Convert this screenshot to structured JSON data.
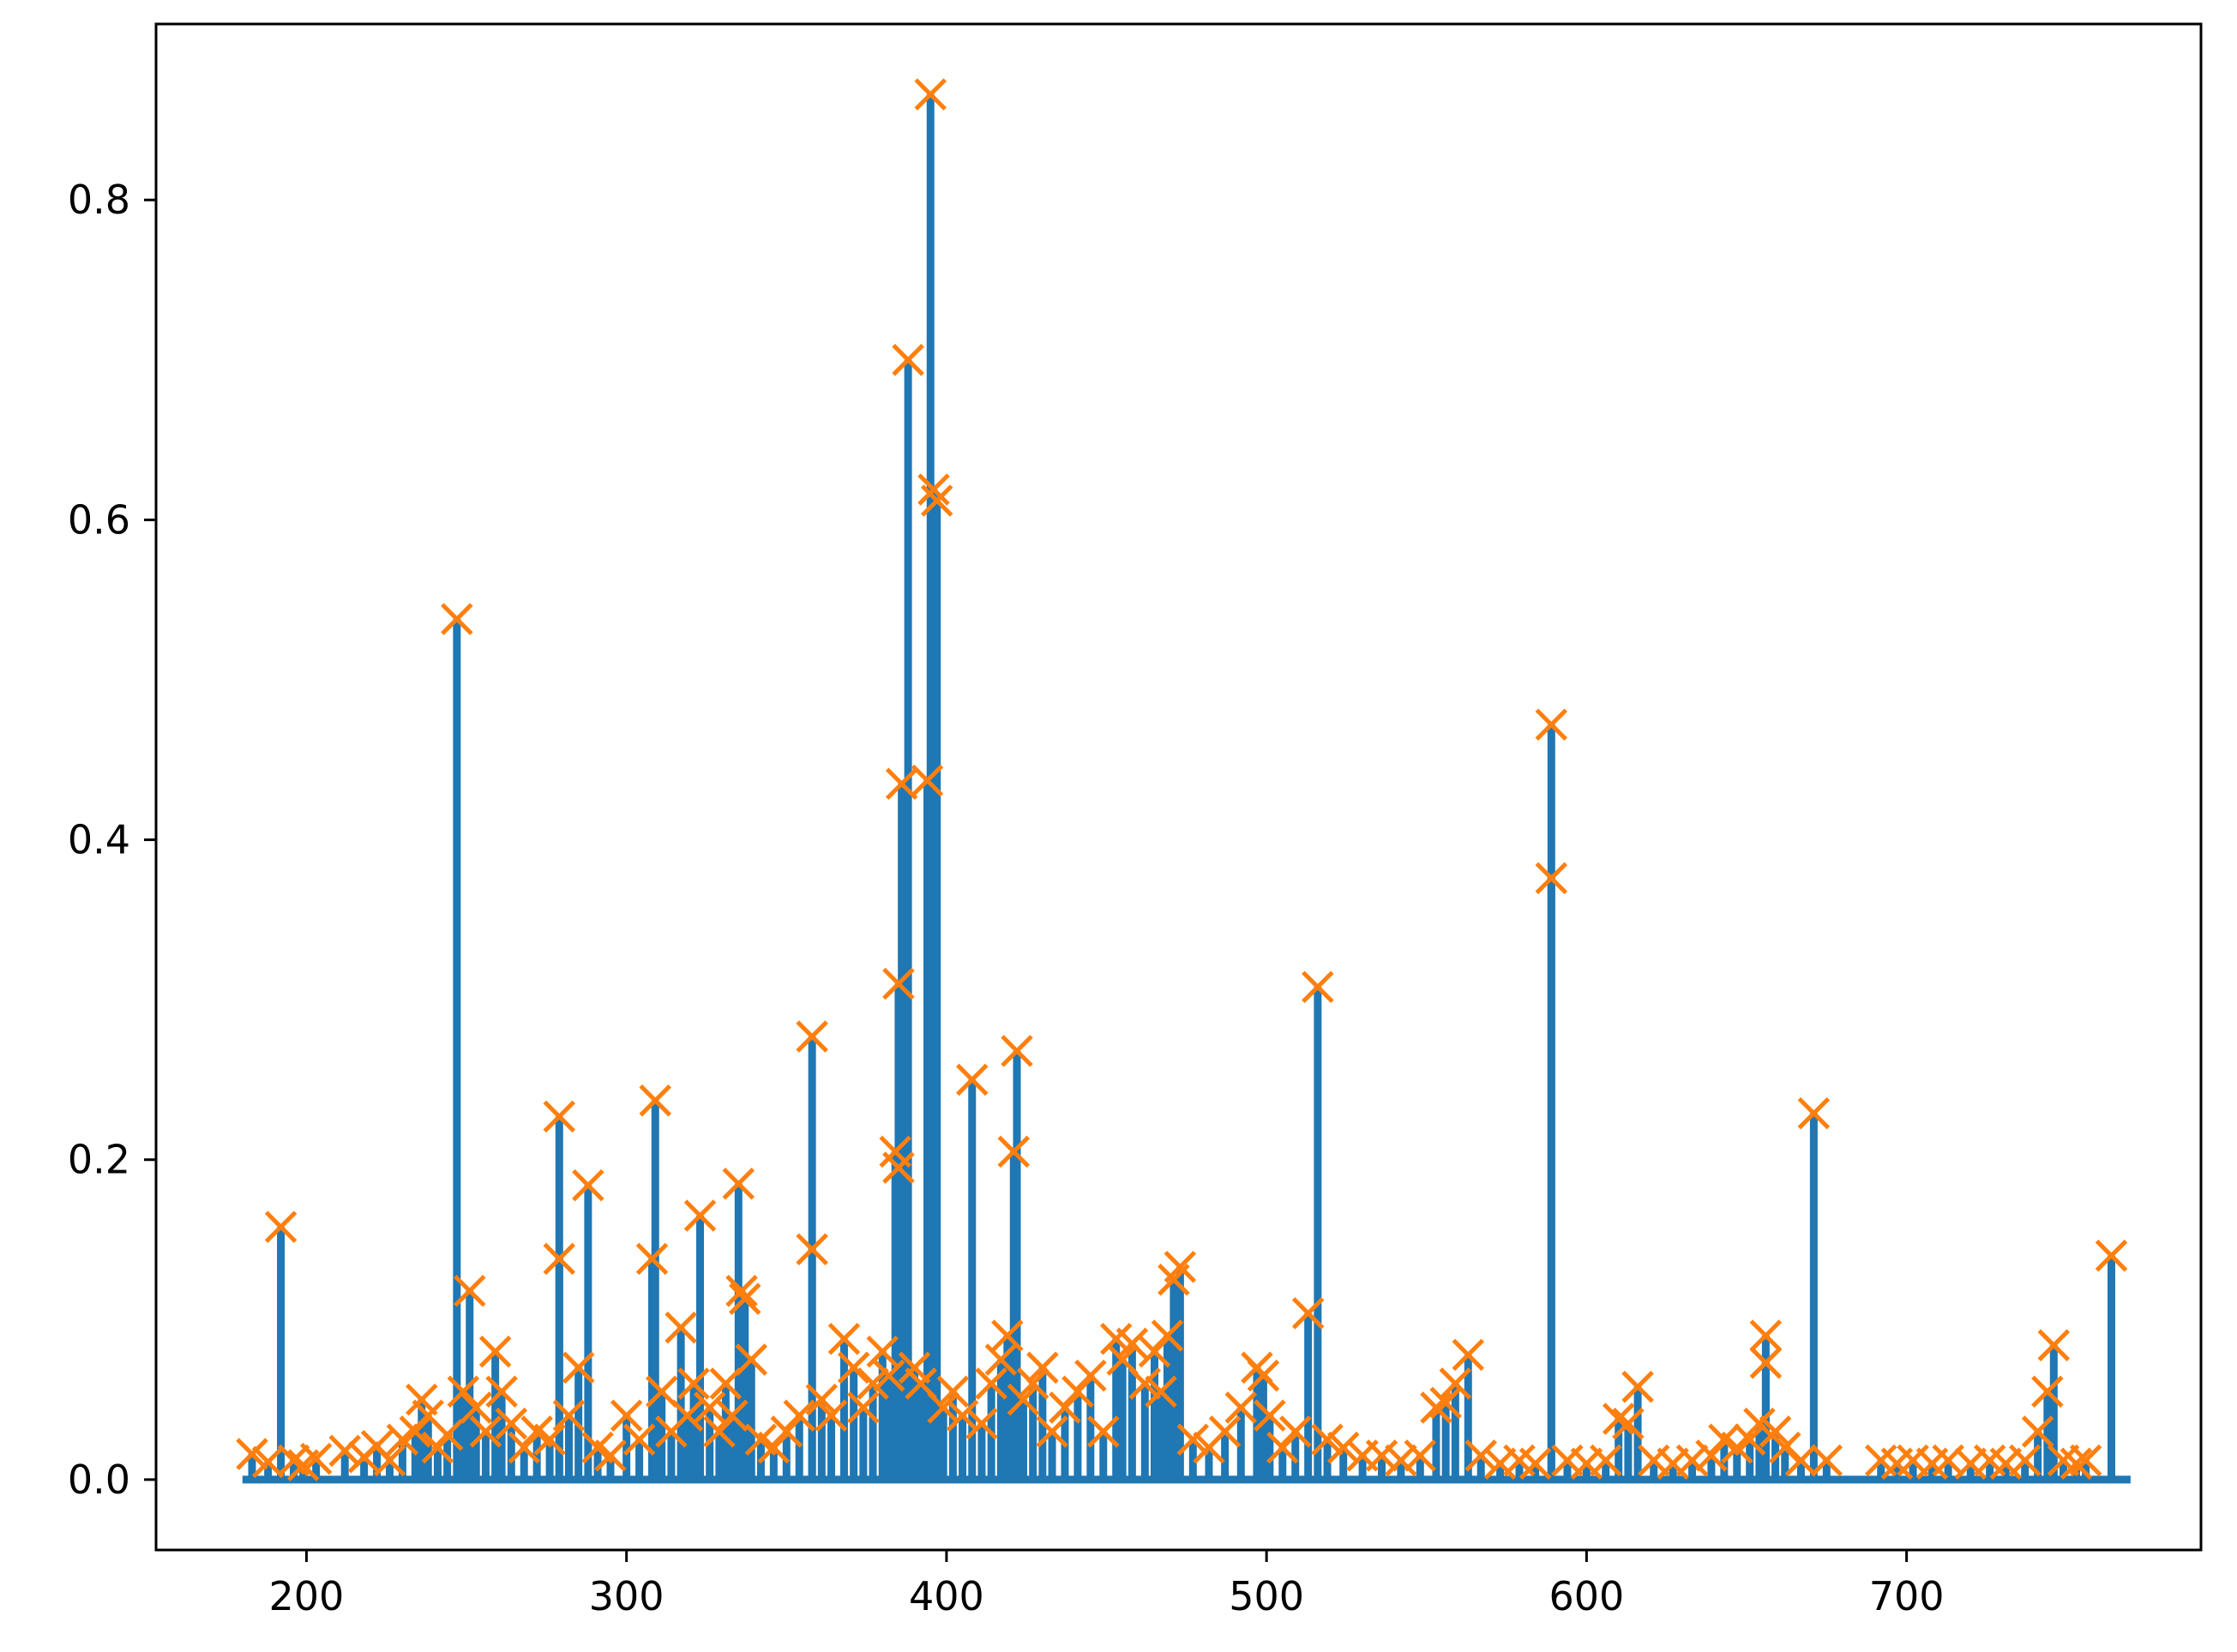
{
  "chart_data": {
    "type": "scatter",
    "description_type": "stem",
    "title": "",
    "xlabel": "",
    "ylabel": "",
    "xlim": [
      153,
      792
    ],
    "ylim": [
      -0.044,
      0.91
    ],
    "grid": false,
    "x_ticks": [
      200,
      300,
      400,
      500,
      600,
      700
    ],
    "x_tick_labels": [
      "200",
      "300",
      "400",
      "500",
      "600",
      "700"
    ],
    "y_ticks": [
      0.0,
      0.2,
      0.4,
      0.6,
      0.8
    ],
    "y_tick_labels": [
      "0.0",
      "0.2",
      "0.4",
      "0.6",
      "0.8"
    ],
    "baseline": {
      "y": 0.0,
      "xmin": 180,
      "xmax": 770
    },
    "colors": {
      "stem": "#1f77b4",
      "marker": "#ff7f0e",
      "axes": "#000000"
    },
    "series": [
      {
        "marker": "x",
        "points": [
          [
            183,
            0.016
          ],
          [
            188,
            0.011
          ],
          [
            192,
            0.158
          ],
          [
            196,
            0.012
          ],
          [
            199,
            0.009
          ],
          [
            203,
            0.013
          ],
          [
            212,
            0.018
          ],
          [
            218,
            0.014
          ],
          [
            222,
            0.021
          ],
          [
            226,
            0.012
          ],
          [
            230,
            0.025
          ],
          [
            234,
            0.03
          ],
          [
            236,
            0.05
          ],
          [
            238,
            0.04
          ],
          [
            241,
            0.02
          ],
          [
            244,
            0.028
          ],
          [
            247,
            0.538
          ],
          [
            249,
            0.055
          ],
          [
            251,
            0.118
          ],
          [
            253,
            0.045
          ],
          [
            256,
            0.03
          ],
          [
            259,
            0.08
          ],
          [
            261,
            0.055
          ],
          [
            264,
            0.035
          ],
          [
            268,
            0.02
          ],
          [
            272,
            0.03
          ],
          [
            276,
            0.025
          ],
          [
            279,
            0.227
          ],
          [
            279,
            0.138
          ],
          [
            282,
            0.04
          ],
          [
            285,
            0.07
          ],
          [
            288,
            0.184
          ],
          [
            291,
            0.02
          ],
          [
            295,
            0.015
          ],
          [
            300,
            0.04
          ],
          [
            304,
            0.025
          ],
          [
            308,
            0.138
          ],
          [
            309,
            0.237
          ],
          [
            311,
            0.055
          ],
          [
            314,
            0.03
          ],
          [
            317,
            0.095
          ],
          [
            319,
            0.04
          ],
          [
            321,
            0.06
          ],
          [
            323,
            0.165
          ],
          [
            326,
            0.045
          ],
          [
            329,
            0.03
          ],
          [
            331,
            0.06
          ],
          [
            333,
            0.04
          ],
          [
            335,
            0.185
          ],
          [
            336,
            0.118
          ],
          [
            337,
            0.113
          ],
          [
            339,
            0.075
          ],
          [
            342,
            0.025
          ],
          [
            346,
            0.02
          ],
          [
            350,
            0.03
          ],
          [
            354,
            0.04
          ],
          [
            358,
            0.277
          ],
          [
            358,
            0.144
          ],
          [
            361,
            0.05
          ],
          [
            364,
            0.04
          ],
          [
            368,
            0.088
          ],
          [
            371,
            0.07
          ],
          [
            374,
            0.045
          ],
          [
            377,
            0.06
          ],
          [
            380,
            0.08
          ],
          [
            382,
            0.065
          ],
          [
            384,
            0.205
          ],
          [
            385,
            0.31
          ],
          [
            385,
            0.195
          ],
          [
            386,
            0.435
          ],
          [
            388,
            0.7
          ],
          [
            390,
            0.07
          ],
          [
            392,
            0.06
          ],
          [
            394,
            0.437
          ],
          [
            395,
            0.866
          ],
          [
            396,
            0.619
          ],
          [
            397,
            0.612
          ],
          [
            399,
            0.045
          ],
          [
            402,
            0.055
          ],
          [
            405,
            0.04
          ],
          [
            408,
            0.25
          ],
          [
            411,
            0.035
          ],
          [
            414,
            0.06
          ],
          [
            417,
            0.075
          ],
          [
            419,
            0.09
          ],
          [
            421,
            0.205
          ],
          [
            422,
            0.268
          ],
          [
            424,
            0.05
          ],
          [
            427,
            0.06
          ],
          [
            430,
            0.07
          ],
          [
            433,
            0.03
          ],
          [
            437,
            0.045
          ],
          [
            441,
            0.055
          ],
          [
            445,
            0.065
          ],
          [
            449,
            0.03
          ],
          [
            453,
            0.088
          ],
          [
            455,
            0.075
          ],
          [
            458,
            0.085
          ],
          [
            462,
            0.06
          ],
          [
            465,
            0.08
          ],
          [
            467,
            0.055
          ],
          [
            469,
            0.09
          ],
          [
            471,
            0.125
          ],
          [
            473,
            0.133
          ],
          [
            477,
            0.025
          ],
          [
            482,
            0.02
          ],
          [
            487,
            0.03
          ],
          [
            492,
            0.045
          ],
          [
            497,
            0.07
          ],
          [
            499,
            0.065
          ],
          [
            501,
            0.04
          ],
          [
            505,
            0.02
          ],
          [
            509,
            0.03
          ],
          [
            513,
            0.104
          ],
          [
            516,
            0.308
          ],
          [
            519,
            0.025
          ],
          [
            524,
            0.02
          ],
          [
            530,
            0.015
          ],
          [
            536,
            0.015
          ],
          [
            542,
            0.012
          ],
          [
            548,
            0.015
          ],
          [
            553,
            0.045
          ],
          [
            556,
            0.048
          ],
          [
            559,
            0.06
          ],
          [
            563,
            0.078
          ],
          [
            567,
            0.015
          ],
          [
            573,
            0.01
          ],
          [
            579,
            0.012
          ],
          [
            584,
            0.01
          ],
          [
            589,
            0.472
          ],
          [
            589,
            0.376
          ],
          [
            594,
            0.012
          ],
          [
            600,
            0.01
          ],
          [
            606,
            0.012
          ],
          [
            610,
            0.038
          ],
          [
            613,
            0.035
          ],
          [
            616,
            0.058
          ],
          [
            621,
            0.012
          ],
          [
            627,
            0.01
          ],
          [
            633,
            0.012
          ],
          [
            639,
            0.015
          ],
          [
            643,
            0.025
          ],
          [
            647,
            0.02
          ],
          [
            651,
            0.025
          ],
          [
            654,
            0.035
          ],
          [
            656,
            0.09
          ],
          [
            656,
            0.073
          ],
          [
            659,
            0.03
          ],
          [
            662,
            0.02
          ],
          [
            667,
            0.012
          ],
          [
            671,
            0.229
          ],
          [
            675,
            0.012
          ],
          [
            692,
            0.012
          ],
          [
            697,
            0.01
          ],
          [
            702,
            0.012
          ],
          [
            708,
            0.01
          ],
          [
            713,
            0.012
          ],
          [
            720,
            0.01
          ],
          [
            726,
            0.012
          ],
          [
            731,
            0.01
          ],
          [
            737,
            0.012
          ],
          [
            741,
            0.03
          ],
          [
            744,
            0.055
          ],
          [
            746,
            0.084
          ],
          [
            749,
            0.012
          ],
          [
            753,
            0.01
          ],
          [
            756,
            0.012
          ],
          [
            764,
            0.14
          ]
        ]
      }
    ]
  }
}
